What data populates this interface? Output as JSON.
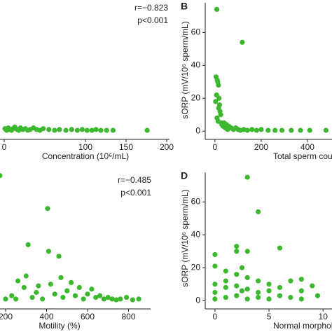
{
  "chart_data": [
    {
      "type": "scatter",
      "xlabel": "Concentration (10⁶/mL)",
      "annotations": [
        "r=−0.823",
        "p<0.001"
      ],
      "color": "#3cb82e",
      "xlim": [
        0,
        210
      ],
      "ylim": [
        -5,
        78
      ],
      "xticks": [
        0,
        100,
        150,
        200
      ],
      "x": [
        1,
        3,
        5,
        7,
        9,
        11,
        13,
        16,
        18,
        20,
        23,
        26,
        29,
        32,
        36,
        40,
        44,
        48,
        55,
        62,
        68,
        76,
        83,
        90,
        96,
        102,
        108,
        113,
        119,
        126,
        134,
        176
      ],
      "y": [
        1.5,
        0.5,
        2,
        1,
        0.5,
        1.5,
        2.5,
        1,
        0.5,
        2,
        1,
        1.5,
        0.5,
        1,
        2,
        1,
        0.5,
        1.5,
        1,
        0.5,
        1,
        0.5,
        1,
        0.5,
        1,
        0.5,
        0.5,
        1,
        0.5,
        0.5,
        0.5,
        0.5
      ]
    },
    {
      "type": "scatter",
      "panel": "B",
      "xlabel": "Total sperm count",
      "ylabel": "sORP (mV/10⁶ sperm/mL)",
      "color": "#3cb82e",
      "xlim": [
        -42,
        500
      ],
      "ylim": [
        -5,
        78
      ],
      "xticks": [
        0,
        200,
        400
      ],
      "yticks": [
        0,
        20,
        40,
        60
      ],
      "x": [
        8,
        5,
        10,
        12,
        15,
        7,
        18,
        20,
        22,
        25,
        9,
        14,
        28,
        30,
        35,
        40,
        45,
        50,
        55,
        60,
        70,
        80,
        90,
        100,
        110,
        118,
        125,
        140,
        160,
        180,
        200,
        230,
        260,
        290,
        330,
        370,
        410,
        480,
        3,
        16
      ],
      "y": [
        74,
        33,
        31,
        30,
        28,
        22,
        20,
        16,
        12,
        10,
        8,
        6,
        5,
        4,
        3,
        5,
        2,
        4,
        1,
        3,
        2,
        1,
        2,
        1,
        0.5,
        54,
        1,
        0.5,
        1,
        0.5,
        1,
        0.5,
        0.5,
        0.5,
        0.5,
        0.5,
        0.5,
        0.5,
        18,
        14
      ]
    },
    {
      "type": "scatter",
      "xlabel": "Motility (%)",
      "annotations": [
        "r=−0.485",
        "p<0.001"
      ],
      "color": "#3cb82e",
      "xlim": [
        0,
        910
      ],
      "ylim": [
        -5,
        78
      ],
      "xticks": [
        200,
        400,
        600,
        800
      ],
      "x": [
        172,
        200,
        230,
        260,
        290,
        310,
        330,
        350,
        380,
        405,
        410,
        420,
        440,
        460,
        480,
        500,
        520,
        540,
        560,
        580,
        600,
        620,
        640,
        660,
        680,
        700,
        720,
        740,
        760,
        790,
        820,
        850,
        470,
        250,
        300,
        360
      ],
      "y": [
        76,
        1,
        3,
        12,
        8,
        34,
        2,
        5,
        1,
        56,
        30,
        10,
        4,
        27,
        2,
        6,
        11,
        3,
        8,
        1,
        4,
        7,
        2,
        3,
        1,
        2,
        1,
        0.5,
        1,
        2,
        0.5,
        1,
        14,
        1,
        15,
        9
      ]
    },
    {
      "type": "scatter",
      "panel": "D",
      "xlabel": "Normal morphology",
      "ylabel": "sORP (mV/10⁶ sperm/mL)",
      "color": "#3cb82e",
      "xlim": [
        -0.9,
        10.7
      ],
      "ylim": [
        -5,
        78
      ],
      "xticks": [
        0,
        5,
        10
      ],
      "yticks": [
        0,
        20,
        40,
        60
      ],
      "x": [
        0,
        0,
        0,
        0,
        0,
        1,
        1,
        1,
        1,
        2,
        2,
        2,
        2,
        2,
        2.5,
        2.5,
        3,
        3,
        3,
        3,
        3,
        4,
        4,
        4,
        4,
        5,
        5,
        5,
        6,
        6,
        6,
        7,
        7,
        8,
        8,
        8,
        9,
        9.5
      ],
      "y": [
        28,
        21,
        10,
        5,
        1,
        18,
        12,
        8,
        2,
        33,
        30,
        16,
        9,
        3,
        20,
        6,
        75,
        30,
        14,
        7,
        1,
        54,
        12,
        5,
        2,
        10,
        6,
        1,
        32,
        8,
        3,
        12,
        2,
        13,
        6,
        1,
        9,
        3
      ]
    }
  ]
}
